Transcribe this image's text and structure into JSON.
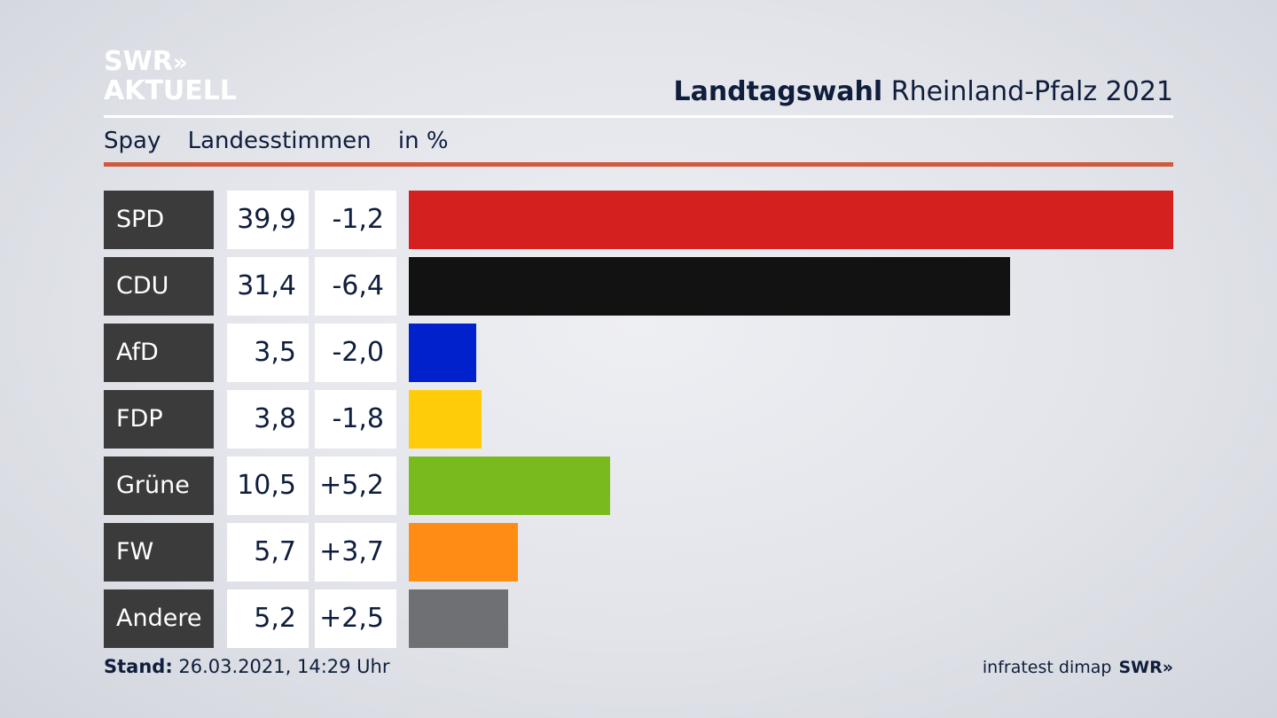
{
  "logo": {
    "line1": "SWR",
    "chevrons": "»",
    "line2": "AKTUELL"
  },
  "header": {
    "title_bold": "Landtagswahl",
    "title_rest": " Rheinland-Pfalz 2021"
  },
  "subheader": {
    "place": "Spay",
    "measure": "Landesstimmen",
    "unit": "in %"
  },
  "footer": {
    "stand_label": "Stand:",
    "stand_value": " 26.03.2021, 14:29 Uhr",
    "source": "infratest dimap",
    "source_brand": "SWR",
    "source_chevrons": "»"
  },
  "chart_data": {
    "type": "bar",
    "orientation": "horizontal",
    "categories": [
      "SPD",
      "CDU",
      "AfD",
      "FDP",
      "Grüne",
      "FW",
      "Andere"
    ],
    "values": [
      39.9,
      31.4,
      3.5,
      3.8,
      10.5,
      5.7,
      5.2
    ],
    "value_labels": [
      "39,9",
      "31,4",
      "3,5",
      "3,8",
      "10,5",
      "5,7",
      "5,2"
    ],
    "change_labels": [
      "-1,2",
      "-6,4",
      "-2,0",
      "-1,8",
      "+5,2",
      "+3,7",
      "+2,5"
    ],
    "changes": [
      -1.2,
      -6.4,
      -2.0,
      -1.8,
      5.2,
      3.7,
      2.5
    ],
    "colors": [
      "#d52020",
      "#121212",
      "#0021cc",
      "#ffcc0a",
      "#79ba1c",
      "#ff8c14",
      "#6f7073"
    ],
    "xlim": [
      0,
      39.9
    ]
  }
}
